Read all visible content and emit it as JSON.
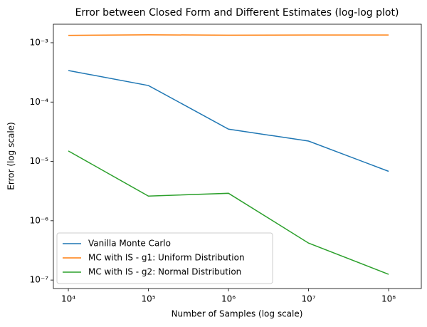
{
  "chart_data": {
    "type": "line",
    "title": "Error between Closed Form and Different Estimates (log-log plot)",
    "xlabel": "Number of Samples (log scale)",
    "ylabel": "Error (log scale)",
    "x": [
      10000,
      100000,
      1000000,
      10000000,
      100000000
    ],
    "series": [
      {
        "name": "Vanilla Monte Carlo",
        "color": "#1f77b4",
        "values": [
          0.00034,
          0.00019,
          3.5e-05,
          2.2e-05,
          6.8e-06
        ]
      },
      {
        "name": "MC with IS - g1: Uniform Distribution",
        "color": "#ff7f0e",
        "values": [
          0.00133,
          0.00136,
          0.00134,
          0.00135,
          0.00135
        ]
      },
      {
        "name": "MC with IS - g2: Normal Distribution",
        "color": "#2ca02c",
        "values": [
          1.5e-05,
          2.6e-06,
          2.9e-06,
          4.2e-07,
          1.25e-07
        ]
      }
    ],
    "xscale": "log",
    "yscale": "log",
    "xlim": [
      6500,
      256000000
    ],
    "ylim": [
      7.2e-08,
      0.00205
    ],
    "xticks": [
      {
        "value": 10000,
        "label": "10⁴"
      },
      {
        "value": 100000,
        "label": "10⁵"
      },
      {
        "value": 1000000,
        "label": "10⁶"
      },
      {
        "value": 10000000,
        "label": "10⁷"
      },
      {
        "value": 100000000,
        "label": "10⁸"
      }
    ],
    "yticks": [
      {
        "value": 0.001,
        "label": "10⁻³"
      },
      {
        "value": 0.0001,
        "label": "10⁻⁴"
      },
      {
        "value": 1e-05,
        "label": "10⁻⁵"
      },
      {
        "value": 1e-06,
        "label": "10⁻⁶"
      },
      {
        "value": 1e-07,
        "label": "10⁻⁷"
      }
    ],
    "grid": false,
    "legend": "lower left"
  }
}
